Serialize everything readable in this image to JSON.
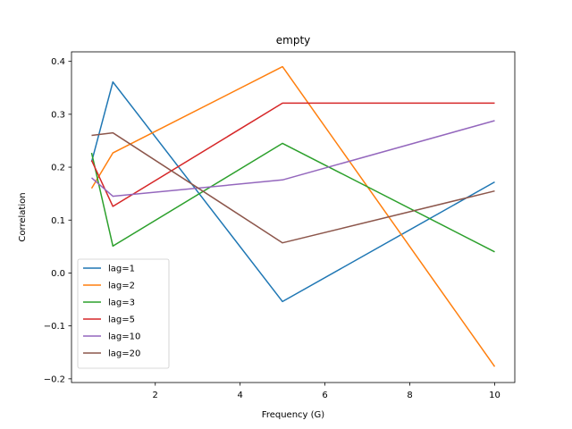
{
  "chart_data": {
    "type": "line",
    "title": "empty",
    "xlabel": "Frequency (G)",
    "ylabel": "Correlation",
    "xlim": [
      0.025,
      10.475
    ],
    "ylim": [
      -0.207,
      0.418
    ],
    "xticks": [
      2,
      4,
      6,
      8,
      10
    ],
    "xtick_labels": [
      "2",
      "4",
      "6",
      "8",
      "10"
    ],
    "yticks": [
      -0.2,
      -0.1,
      0.0,
      0.1,
      0.2,
      0.3,
      0.4
    ],
    "ytick_labels": [
      "−0.2",
      "−0.1",
      "0.0",
      "0.1",
      "0.2",
      "0.3",
      "0.4"
    ],
    "grid": false,
    "legend_position": "lower-left",
    "x": [
      0.5,
      1,
      5,
      10
    ],
    "series": [
      {
        "name": "lag=1",
        "color": "#1f77b4",
        "values": [
          0.21,
          0.361,
          -0.054,
          0.172
        ]
      },
      {
        "name": "lag=2",
        "color": "#ff7f0e",
        "values": [
          0.16,
          0.227,
          0.39,
          -0.177
        ]
      },
      {
        "name": "lag=3",
        "color": "#2ca02c",
        "values": [
          0.227,
          0.051,
          0.245,
          0.04
        ]
      },
      {
        "name": "lag=5",
        "color": "#d62728",
        "values": [
          0.213,
          0.126,
          0.321,
          0.321
        ]
      },
      {
        "name": "lag=10",
        "color": "#9467bd",
        "values": [
          0.18,
          0.145,
          0.176,
          0.288
        ]
      },
      {
        "name": "lag=20",
        "color": "#8c564b",
        "values": [
          0.26,
          0.265,
          0.057,
          0.155
        ]
      }
    ]
  }
}
